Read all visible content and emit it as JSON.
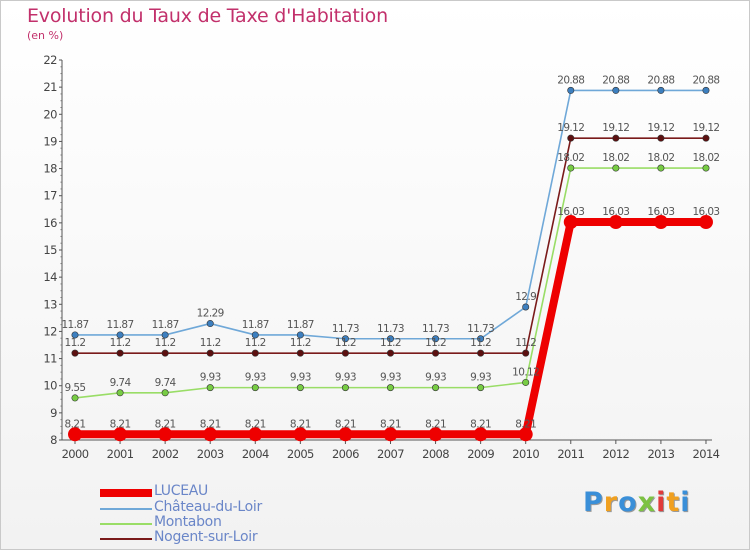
{
  "title": "Evolution du Taux de Taxe d'Habitation",
  "unit": "(en %)",
  "logo": {
    "text": "Proxiti",
    "letter_colors": [
      "#3a8fd8",
      "#f0a020",
      "#3a8fd8",
      "#7dc242",
      "#e03a3a",
      "#f0a020",
      "#3a8fd8"
    ]
  },
  "chart_data": {
    "type": "line",
    "title": "Evolution du Taux de Taxe d'Habitation",
    "ylabel": "(en %)",
    "xlabel": "",
    "ylim": [
      8,
      22
    ],
    "y_ticks": [
      8,
      9,
      10,
      11,
      12,
      13,
      14,
      15,
      16,
      17,
      18,
      19,
      20,
      21,
      22
    ],
    "grid": false,
    "legend_position": "bottom-left",
    "x": [
      "2000",
      "2001",
      "2002",
      "2003",
      "2004",
      "2005",
      "2006",
      "2007",
      "2008",
      "2009",
      "2010",
      "2011",
      "2012",
      "2013",
      "2014"
    ],
    "series": [
      {
        "name": "Nogent-sur-Loir",
        "color": "#7a1a1a",
        "point_color": "#5c1010",
        "values": [
          11.2,
          11.2,
          11.2,
          11.2,
          11.2,
          11.2,
          11.2,
          11.2,
          11.2,
          11.2,
          11.2,
          19.12,
          19.12,
          19.12,
          19.12
        ],
        "labels": [
          "11.2",
          "11.2",
          "11.2",
          "11.2",
          "11.2",
          "11.2",
          "11.2",
          "11.2",
          "11.2",
          "11.2",
          "11.2",
          "19.12",
          "19.12",
          "19.12",
          "19.12"
        ]
      },
      {
        "name": "Montabon",
        "color": "#99dd66",
        "point_color": "#77cc44",
        "values": [
          9.55,
          9.74,
          9.74,
          9.93,
          9.93,
          9.93,
          9.93,
          9.93,
          9.93,
          9.93,
          10.12,
          18.02,
          18.02,
          18.02,
          18.02
        ],
        "labels": [
          "9.55",
          "9.74",
          "9.74",
          "9.93",
          "9.93",
          "9.93",
          "9.93",
          "9.93",
          "9.93",
          "9.93",
          "10.12",
          "18.02",
          "18.02",
          "18.02",
          "18.02"
        ]
      },
      {
        "name": "Château-du-Loir",
        "color": "#6fa8d8",
        "point_color": "#3d7fbf",
        "values": [
          11.87,
          11.87,
          11.87,
          12.29,
          11.87,
          11.87,
          11.73,
          11.73,
          11.73,
          11.73,
          12.9,
          20.88,
          20.88,
          20.88,
          20.88
        ],
        "labels": [
          "11.87",
          "11.87",
          "11.87",
          "12.29",
          "11.87",
          "11.87",
          "11.73",
          "11.73",
          "11.73",
          "11.73",
          "12.9",
          "20.88",
          "20.88",
          "20.88",
          "20.88"
        ]
      },
      {
        "name": "LUCEAU",
        "color": "#ee0000",
        "point_color": "#ee0000",
        "thick": true,
        "values": [
          8.21,
          8.21,
          8.21,
          8.21,
          8.21,
          8.21,
          8.21,
          8.21,
          8.21,
          8.21,
          8.21,
          16.03,
          16.03,
          16.03,
          16.03
        ],
        "labels": [
          "8.21",
          "8.21",
          "8.21",
          "8.21",
          "8.21",
          "8.21",
          "8.21",
          "8.21",
          "8.21",
          "8.21",
          "8.21",
          "16.03",
          "16.03",
          "16.03",
          "16.03"
        ]
      }
    ],
    "legend": [
      {
        "name": "LUCEAU",
        "color": "#ee0000",
        "text_color": "#6a86c8",
        "thick": true
      },
      {
        "name": "Château-du-Loir",
        "color": "#6fa8d8",
        "text_color": "#6a86c8"
      },
      {
        "name": "Montabon",
        "color": "#99dd66",
        "text_color": "#6a86c8"
      },
      {
        "name": "Nogent-sur-Loir",
        "color": "#7a1a1a",
        "text_color": "#6a86c8"
      }
    ]
  }
}
